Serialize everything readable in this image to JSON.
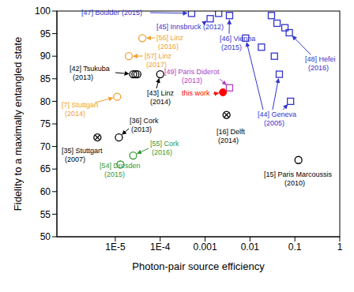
{
  "chart_data": {
    "type": "scatter",
    "x_label": "Photon-pair source efficiency",
    "y_label": "Fidelity to a maximally entangled state",
    "log": "x",
    "grid": false,
    "xlim": [
      5e-07,
      1
    ],
    "xticks": [
      {
        "value": 1e-05,
        "label": "1E-5"
      },
      {
        "value": 0.0001,
        "label": "1E-4"
      },
      0.001,
      0.01,
      0.1,
      1
    ],
    "ylim": [
      50,
      100
    ],
    "yticks": [
      50,
      55,
      60,
      65,
      70,
      75,
      80,
      85,
      90,
      95,
      100
    ],
    "series": [
      {
        "color": "#3333cc",
        "marker": "square",
        "x": [
          0.0005,
          0.0013,
          0.002,
          0.0035,
          0.008,
          0.018,
          0.035,
          0.045,
          0.08,
          0.03,
          0.04,
          0.06,
          0.075
        ],
        "values": [
          99.5,
          98.3,
          99.5,
          99,
          94,
          92,
          90,
          86,
          80,
          99,
          97.3,
          96.3,
          95.2
        ]
      },
      {
        "color": "#b040c0",
        "marker": "square",
        "x": [
          0.0035
        ],
        "values": [
          83
        ]
      },
      {
        "color": "#ff0000",
        "marker": "filled_circle",
        "x": [
          0.0025
        ],
        "values": [
          82
        ]
      },
      {
        "color": "#000000",
        "marker": "crossed_circle",
        "x": [
          0.003,
          4e-06
        ],
        "values": [
          77,
          72
        ]
      },
      {
        "color": "#000000",
        "marker": "circle",
        "x": [
          2.5e-05,
          2.8e-05,
          3.1e-05,
          0.0001,
          1.2e-05,
          0.12
        ],
        "values": [
          86,
          86,
          86,
          86,
          72,
          67
        ]
      },
      {
        "color": "#f0a030",
        "marker": "circle",
        "x": [
          4e-05,
          2e-05,
          1.1e-05
        ],
        "values": [
          94,
          90,
          81
        ]
      },
      {
        "color": "#339933",
        "marker": "circle",
        "x": [
          2.5e-05,
          1.3e-05
        ],
        "values": [
          68,
          66
        ]
      }
    ],
    "annotations": [
      {
        "text": [
          "[47] Boulder (2015)"
        ],
        "color": "#3333cc"
      },
      {
        "text": [
          "[45] Innsbruck (2012)"
        ],
        "color": "#3333cc"
      },
      {
        "text": [
          "[46] Vienna",
          "(2015)"
        ],
        "color": "#3333cc"
      },
      {
        "text": [
          "[48] Hefei",
          "(2016)"
        ],
        "color": "#3333cc"
      },
      {
        "text": [
          "[44] Geneva",
          "(2005)"
        ],
        "color": "#3333cc"
      },
      {
        "text": [
          "[49] Paris Diderot",
          "(2013)"
        ],
        "color": "#b040c0"
      },
      {
        "text": [
          "this work"
        ],
        "color": "#ff0000"
      },
      {
        "text": [
          "[16] Delft",
          "(2014)"
        ],
        "color": "#000000"
      },
      {
        "text": [
          "[56] Linz",
          "(2016)"
        ],
        "color": "#f0a030"
      },
      {
        "text": [
          "[57] Linz",
          "(2017)"
        ],
        "color": "#f0a030"
      },
      {
        "text": [
          "[42] Tsukuba",
          "(2013)"
        ],
        "color": "#000000"
      },
      {
        "text": [
          "[43] Linz",
          "(2014)"
        ],
        "color": "#000000"
      },
      {
        "text": [
          "[7] Stuttgart",
          "(2014)"
        ],
        "color": "#f0a030"
      },
      {
        "text": [
          "[36] Cork",
          "(2013)"
        ],
        "color": "#000000"
      },
      {
        "text": [
          "[55] Cork",
          "(2016)"
        ],
        "color": "#339933"
      },
      {
        "text": [
          "[54] Dresden",
          "(2015)"
        ],
        "color": "#339933"
      },
      {
        "text": [
          "[35] Stuttgart",
          "(2007)"
        ],
        "color": "#000000"
      },
      {
        "text": [
          "[15] Paris Marcoussis",
          "(2010)"
        ],
        "color": "#000000"
      }
    ]
  }
}
